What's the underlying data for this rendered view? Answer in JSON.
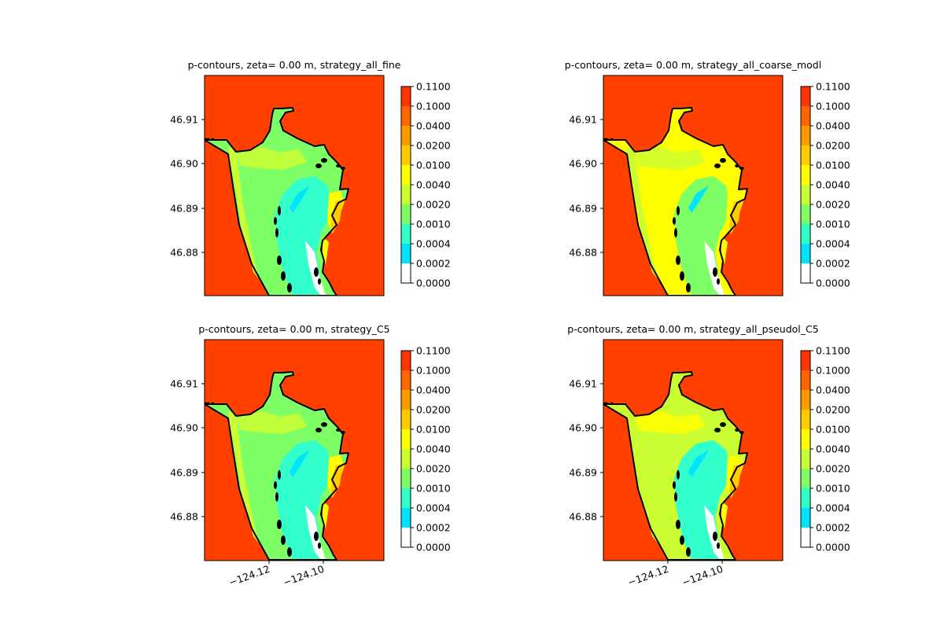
{
  "chart_data": [
    {
      "type": "heatmap",
      "title": "p-contours, zeta= 0.00 m, strategy_all_fine",
      "yticks": [
        "46.91",
        "46.90",
        "46.89",
        "46.88"
      ],
      "xticks": [],
      "interior_fill": "green"
    },
    {
      "type": "heatmap",
      "title": "p-contours, zeta= 0.00 m, strategy_all_coarse_modl",
      "yticks": [
        "46.91",
        "46.90",
        "46.89",
        "46.88"
      ],
      "xticks": [],
      "interior_fill": "yellow"
    },
    {
      "type": "heatmap",
      "title": "p-contours, zeta= 0.00 m, strategy_C5",
      "yticks": [
        "46.91",
        "46.90",
        "46.89",
        "46.88"
      ],
      "xticks": [
        "−124.12",
        "−124.10"
      ],
      "interior_fill": "green"
    },
    {
      "type": "heatmap",
      "title": "p-contours, zeta= 0.00 m, strategy_all_pseudol_C5",
      "yticks": [
        "46.91",
        "46.90",
        "46.89",
        "46.88"
      ],
      "xticks": [
        "−124.12",
        "−124.10"
      ],
      "interior_fill": "mixed"
    }
  ],
  "colorbar": {
    "levels": [
      "0.0000",
      "0.0002",
      "0.0004",
      "0.0010",
      "0.0020",
      "0.0040",
      "0.0100",
      "0.0200",
      "0.0400",
      "0.1000",
      "0.1100"
    ],
    "colors": [
      "#ffffff",
      "#00e5ff",
      "#33ffcc",
      "#7fff66",
      "#ccff33",
      "#ffff00",
      "#ffcc00",
      "#ff9900",
      "#ff6600",
      "#ff3300",
      "#ee0000"
    ]
  },
  "colors": {
    "ocean": "#ff4000",
    "coast": "#000000"
  }
}
